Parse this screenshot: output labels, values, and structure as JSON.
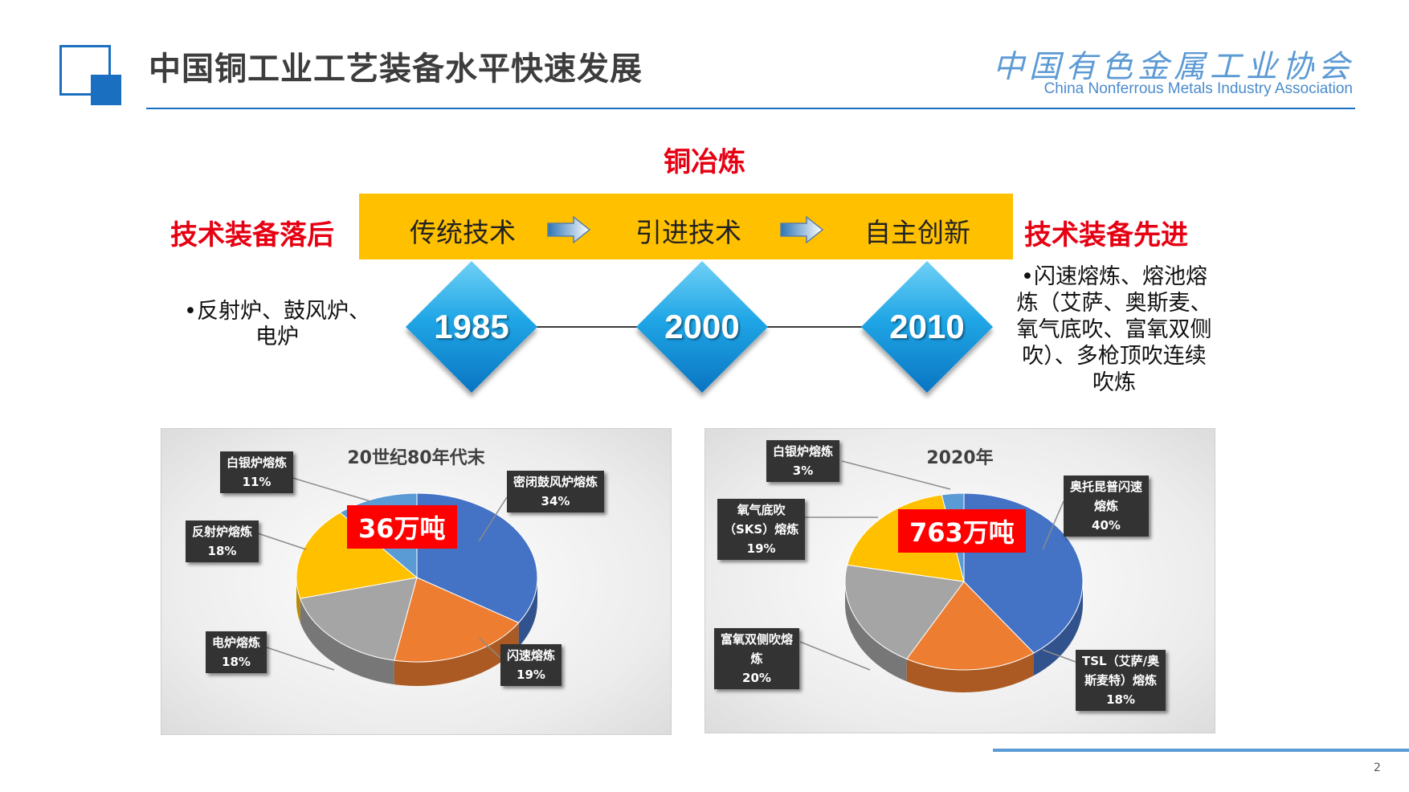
{
  "header": {
    "title": "中国铜工业工艺装备水平快速发展",
    "org_cn": "中国有色金属工业协会",
    "org_en": "China Nonferrous Metals Industry Association"
  },
  "timeline": {
    "section_title": "铜冶炼",
    "left_label": "技术装备落后",
    "right_label": "技术装备先进",
    "stages": [
      "传统技术",
      "引进技术",
      "自主创新"
    ],
    "years": [
      "1985",
      "2000",
      "2010"
    ],
    "old_note": "•反射炉、鼓风炉、电炉",
    "new_note": "•闪速熔炼、熔池熔炼（艾萨、奥斯麦、氧气底吹、富氧双侧吹）、多枪顶吹连续吹炼"
  },
  "colors": {
    "title_red": "#e60012",
    "band_yellow": "#ffc000",
    "brand_blue": "#1a6fc1",
    "pie_blue": "#4472c4",
    "pie_orange": "#ed7d31",
    "pie_gray": "#a5a5a5",
    "pie_yellow": "#ffc000",
    "pie_lightblue": "#5b9bd5"
  },
  "chart_data": [
    {
      "type": "pie",
      "title": "20世纪80年代末",
      "total_label": "36万吨",
      "slices": [
        {
          "name": "密闭鼓风炉熔炼",
          "value": 34,
          "label": "34%",
          "color": "#4472c4"
        },
        {
          "name": "闪速熔炼",
          "value": 19,
          "label": "19%",
          "color": "#ed7d31"
        },
        {
          "name": "电炉熔炼",
          "value": 18,
          "label": "18%",
          "color": "#a5a5a5"
        },
        {
          "name": "反射炉熔炼",
          "value": 18,
          "label": "18%",
          "color": "#ffc000"
        },
        {
          "name": "白银炉熔炼",
          "value": 11,
          "label": "11%",
          "color": "#5b9bd5"
        }
      ]
    },
    {
      "type": "pie",
      "title": "2020年",
      "total_label": "763万吨",
      "slices": [
        {
          "name": "奥托昆普闪速熔炼",
          "value": 40,
          "label": "40%",
          "color": "#4472c4"
        },
        {
          "name": "TSL（艾萨/奥斯麦特）熔炼",
          "value": 18,
          "label": "18%",
          "color": "#ed7d31"
        },
        {
          "name": "富氧双侧吹熔炼",
          "value": 20,
          "label": "20%",
          "color": "#a5a5a5"
        },
        {
          "name": "氧气底吹（SKS）熔炼",
          "value": 19,
          "label": "19%",
          "color": "#ffc000"
        },
        {
          "name": "白银炉熔炼",
          "value": 3,
          "label": "3%",
          "color": "#5b9bd5"
        }
      ]
    }
  ],
  "callouts": [
    [
      {
        "lines": [
          "密闭鼓风炉熔炼",
          "34%"
        ]
      },
      {
        "lines": [
          "闪速熔炼",
          "19%"
        ]
      },
      {
        "lines": [
          "电炉熔炼",
          "18%"
        ]
      },
      {
        "lines": [
          "反射炉熔炼",
          "18%"
        ]
      },
      {
        "lines": [
          "白银炉熔炼",
          "11%"
        ]
      }
    ],
    [
      {
        "lines": [
          "奥托昆普闪速",
          "熔炼",
          "40%"
        ]
      },
      {
        "lines": [
          "TSL（艾萨/奥",
          "斯麦特）熔炼",
          "18%"
        ]
      },
      {
        "lines": [
          "富氧双侧吹熔",
          "炼",
          "20%"
        ]
      },
      {
        "lines": [
          "氧气底吹",
          "（SKS）熔炼",
          "19%"
        ]
      },
      {
        "lines": [
          "白银炉熔炼",
          "3%"
        ]
      }
    ]
  ],
  "page_number": "2"
}
